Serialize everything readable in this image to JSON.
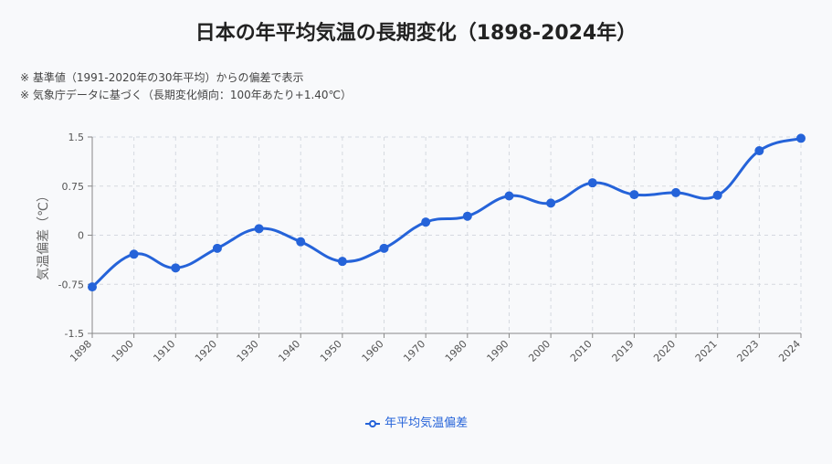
{
  "title": "日本の年平均気温の長期変化（1898-2024年）",
  "notes": [
    "※ 基準値（1991-2020年の30年平均）からの偏差で表示",
    "※ 気象庁データに基づく（長期変化傾向：100年あたり+1.40℃）"
  ],
  "colors": {
    "series": "#2563d9",
    "grid": "#d5d9e0",
    "axis": "#888888",
    "tick_text": "#555555"
  },
  "chart_data": {
    "type": "line",
    "title": "日本の年平均気温の長期変化（1898-2024年）",
    "xlabel": "",
    "ylabel": "気温偏差（℃）",
    "categories": [
      "1898",
      "1900",
      "1910",
      "1920",
      "1930",
      "1940",
      "1950",
      "1960",
      "1970",
      "1980",
      "1990",
      "2000",
      "2010",
      "2019",
      "2020",
      "2021",
      "2023",
      "2024"
    ],
    "series": [
      {
        "name": "年平均気温偏差",
        "values": [
          -0.79,
          -0.29,
          -0.5,
          -0.2,
          0.1,
          -0.1,
          -0.4,
          -0.2,
          0.2,
          0.29,
          0.6,
          0.49,
          0.8,
          0.62,
          0.65,
          0.61,
          1.29,
          1.48
        ]
      }
    ],
    "ylim": [
      -1.5,
      1.5
    ],
    "yticks": [
      -1.5,
      -0.75,
      0,
      0.75,
      1.5
    ],
    "ytick_labels": [
      "-1.5",
      "-0.75",
      "0",
      "0.75",
      "1.5"
    ],
    "grid": true,
    "legend_position": "bottom"
  }
}
